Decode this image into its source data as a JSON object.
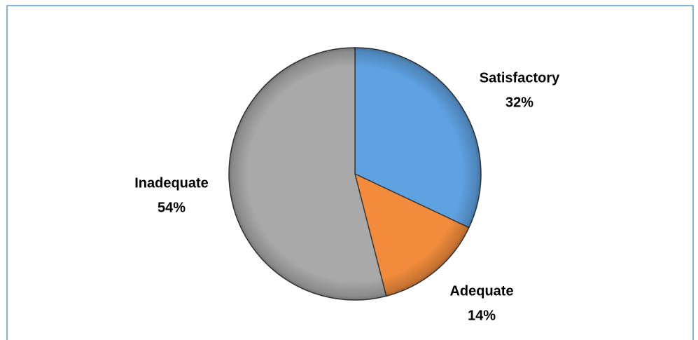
{
  "chart_data": {
    "type": "pie",
    "categories": [
      "Satisfactory",
      "Adequate",
      "Inadequate"
    ],
    "values": [
      32,
      14,
      54
    ],
    "value_labels": [
      "32%",
      "14%",
      "54%"
    ],
    "colors": [
      "#5fa2e2",
      "#f28c3c",
      "#a9a9a9"
    ]
  }
}
